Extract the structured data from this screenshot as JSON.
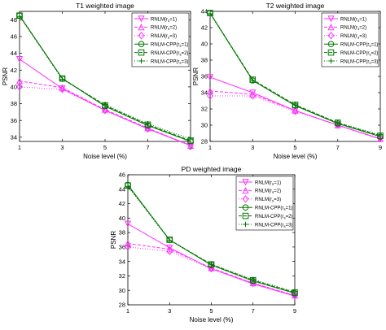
{
  "chart_data": [
    {
      "type": "line",
      "title": "T1 weighted image",
      "xlabel": "Noise level (%)",
      "ylabel": "PSNR",
      "xlim": [
        1,
        9
      ],
      "ylim": [
        33.5,
        49
      ],
      "x_ticks": [
        1,
        3,
        5,
        7,
        9
      ],
      "y_ticks": [
        34,
        36,
        38,
        40,
        42,
        44,
        46,
        48
      ],
      "x": [
        1,
        3,
        5,
        7,
        9
      ],
      "grid": false,
      "legend_position": "top-right",
      "series": [
        {
          "name": "RNLM(r_s=1)",
          "color": "#ff33ff",
          "dash": "solid",
          "marker": "triangle-down",
          "values": [
            43.3,
            39.8,
            37.2,
            35.0,
            33.0
          ]
        },
        {
          "name": "RNLM(r_s=2)",
          "color": "#ff33ff",
          "dash": "dashed",
          "marker": "triangle-up",
          "values": [
            40.7,
            39.9,
            37.3,
            35.1,
            33.0
          ]
        },
        {
          "name": "RNLM(r_s=3)",
          "color": "#ff33ff",
          "dash": "dotted",
          "marker": "diamond",
          "values": [
            40.0,
            39.7,
            37.2,
            35.0,
            33.1
          ]
        },
        {
          "name": "RNLM-CPP(r_s=1)",
          "color": "#007700",
          "dash": "solid",
          "marker": "circle",
          "values": [
            48.5,
            41.0,
            37.7,
            35.4,
            33.5
          ]
        },
        {
          "name": "RNLM-CPP(r_s=2)",
          "color": "#007700",
          "dash": "dashed",
          "marker": "square",
          "values": [
            48.5,
            41.0,
            37.8,
            35.5,
            33.6
          ]
        },
        {
          "name": "RNLM-CPP(r_s=3)",
          "color": "#007700",
          "dash": "dotted",
          "marker": "plus",
          "values": [
            48.4,
            40.9,
            37.9,
            35.6,
            33.8
          ]
        }
      ],
      "legend_labels": [
        {
          "prefix": "RNLM(",
          "sub": "s",
          "suffix": "=1)"
        },
        {
          "prefix": "RNLM(",
          "sub": "s",
          "suffix": "=2)"
        },
        {
          "prefix": "RNLM(",
          "sub": "s",
          "suffix": "=3)"
        },
        {
          "prefix": "RNLM-CPP(",
          "sub": "s",
          "suffix": "=1)"
        },
        {
          "prefix": "RNLM-CPP(",
          "sub": "s",
          "suffix": "=2)"
        },
        {
          "prefix": "RNLM-CPP(",
          "sub": "s",
          "suffix": "=3)"
        }
      ]
    },
    {
      "type": "line",
      "title": "T2 weighted image",
      "xlabel": "Noise level (%)",
      "ylabel": "PSNR",
      "xlim": [
        1,
        9
      ],
      "ylim": [
        28,
        44
      ],
      "x_ticks": [
        1,
        3,
        5,
        7,
        9
      ],
      "y_ticks": [
        28,
        30,
        32,
        34,
        36,
        38,
        40,
        42,
        44
      ],
      "x": [
        1,
        3,
        5,
        7,
        9
      ],
      "grid": false,
      "legend_position": "top-right",
      "series": [
        {
          "name": "RNLM(r_s=1)",
          "color": "#ff33ff",
          "dash": "solid",
          "marker": "triangle-down",
          "values": [
            35.9,
            34.0,
            31.8,
            30.0,
            28.3
          ]
        },
        {
          "name": "RNLM(r_s=2)",
          "color": "#ff33ff",
          "dash": "dashed",
          "marker": "triangle-up",
          "values": [
            34.2,
            33.8,
            31.8,
            30.0,
            28.3
          ]
        },
        {
          "name": "RNLM(r_s=3)",
          "color": "#ff33ff",
          "dash": "dotted",
          "marker": "diamond",
          "values": [
            33.6,
            33.6,
            31.7,
            30.0,
            28.4
          ]
        },
        {
          "name": "RNLM-CPP(r_s=1)",
          "color": "#007700",
          "dash": "solid",
          "marker": "circle",
          "values": [
            43.8,
            35.5,
            32.4,
            30.2,
            28.6
          ]
        },
        {
          "name": "RNLM-CPP(r_s=2)",
          "color": "#007700",
          "dash": "dashed",
          "marker": "square",
          "values": [
            43.8,
            35.6,
            32.5,
            30.3,
            28.7
          ]
        },
        {
          "name": "RNLM-CPP(r_s=3)",
          "color": "#007700",
          "dash": "dotted",
          "marker": "plus",
          "values": [
            43.7,
            35.5,
            32.5,
            30.3,
            28.8
          ]
        }
      ],
      "legend_labels": [
        {
          "prefix": "RNLM(",
          "sub": "s",
          "suffix": "=1)"
        },
        {
          "prefix": "RNLM(",
          "sub": "s",
          "suffix": "=2)"
        },
        {
          "prefix": "RNLM(",
          "sub": "s",
          "suffix": "=3)"
        },
        {
          "prefix": "RNLM-CPP(",
          "sub": "s",
          "suffix": "=1)"
        },
        {
          "prefix": "RNLM-CPP(",
          "sub": "s",
          "suffix": "=2)"
        },
        {
          "prefix": "RNLM-CPP(",
          "sub": "s",
          "suffix": "=3)"
        }
      ]
    },
    {
      "type": "line",
      "title": "PD weighted image",
      "xlabel": "Noise level (%)",
      "ylabel": "PSNR",
      "xlim": [
        1,
        9
      ],
      "ylim": [
        28,
        46
      ],
      "x_ticks": [
        1,
        3,
        5,
        7,
        9
      ],
      "y_ticks": [
        28,
        30,
        32,
        34,
        36,
        38,
        40,
        42,
        44,
        46
      ],
      "x": [
        1,
        3,
        5,
        7,
        9
      ],
      "grid": false,
      "legend_position": "top-right",
      "series": [
        {
          "name": "RNLM(r_s=1)",
          "color": "#ff33ff",
          "dash": "solid",
          "marker": "triangle-down",
          "values": [
            39.2,
            35.9,
            33.0,
            30.9,
            29.2
          ]
        },
        {
          "name": "RNLM(r_s=2)",
          "color": "#ff33ff",
          "dash": "dashed",
          "marker": "triangle-up",
          "values": [
            36.5,
            35.7,
            33.1,
            31.0,
            29.3
          ]
        },
        {
          "name": "RNLM(r_s=3)",
          "color": "#ff33ff",
          "dash": "dotted",
          "marker": "diamond",
          "values": [
            36.0,
            35.4,
            33.0,
            31.0,
            29.3
          ]
        },
        {
          "name": "RNLM-CPP(r_s=1)",
          "color": "#007700",
          "dash": "solid",
          "marker": "circle",
          "values": [
            44.6,
            37.0,
            33.5,
            31.3,
            29.6
          ]
        },
        {
          "name": "RNLM-CPP(r_s=2)",
          "color": "#007700",
          "dash": "dashed",
          "marker": "square",
          "values": [
            44.5,
            37.0,
            33.6,
            31.4,
            29.7
          ]
        },
        {
          "name": "RNLM-CPP(r_s=3)",
          "color": "#007700",
          "dash": "dotted",
          "marker": "plus",
          "values": [
            44.4,
            36.9,
            33.6,
            31.5,
            29.8
          ]
        }
      ],
      "legend_labels": [
        {
          "prefix": "RNLM(",
          "sub": "s",
          "suffix": "=1)"
        },
        {
          "prefix": "RNLM(",
          "sub": "s",
          "suffix": "=2)"
        },
        {
          "prefix": "RNLM(",
          "sub": "s",
          "suffix": "=3)"
        },
        {
          "prefix": "RNLM-CPP(",
          "sub": "s",
          "suffix": "=1)"
        },
        {
          "prefix": "RNLM-CPP(",
          "sub": "s",
          "suffix": "=2)"
        },
        {
          "prefix": "RNLM-CPP(",
          "sub": "s",
          "suffix": "=3)"
        }
      ]
    }
  ]
}
